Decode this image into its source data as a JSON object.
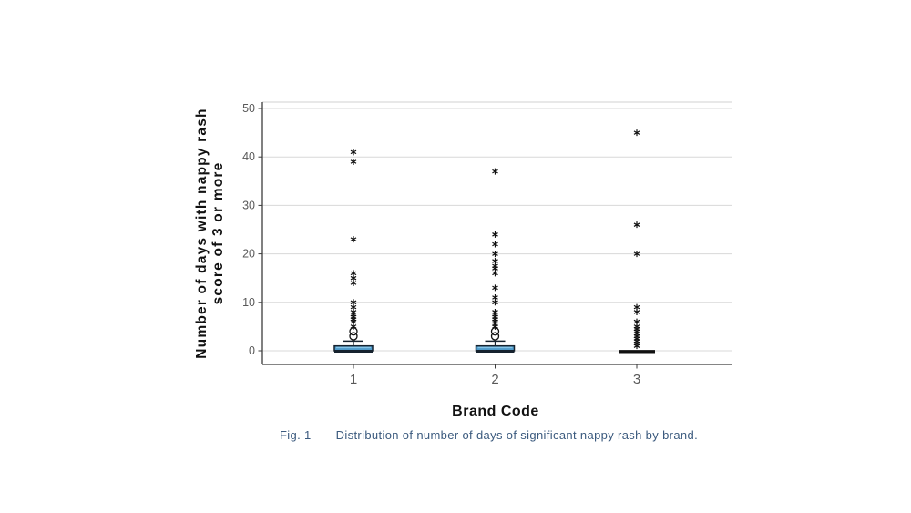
{
  "figure": {
    "caption": {
      "label": "Fig. 1",
      "text": "Distribution of number of days of significant nappy rash by brand.",
      "color": "#3b5a7e"
    }
  },
  "chart_data": {
    "type": "box",
    "title": "",
    "xlabel": "Brand Code",
    "ylabel": "Number of days with nappy rash score of 3 or more",
    "ylabel_lines": [
      "Number of days with nappy rash",
      "score of 3 or more"
    ],
    "categories": [
      "1",
      "2",
      "3"
    ],
    "yticks": [
      0,
      10,
      20,
      30,
      40,
      50
    ],
    "ylim": [
      -3,
      51
    ],
    "grid": true,
    "legend": "none",
    "marker_semantics": {
      "star": "extreme-outlier",
      "circle": "mild-outlier"
    },
    "colors": {
      "box_fill": "#4f9bcb",
      "box_highlight": "#85c4e8",
      "box_border": "#16222e",
      "grid_line": "#d8d8d8",
      "frame_line": "#d0d0d0",
      "axis_line": "#3c3c3c",
      "tick_label": "#595959",
      "axis_title": "#111111",
      "outlier": "#111111"
    },
    "boxes": [
      {
        "category": "1",
        "q1": 0,
        "median": 0,
        "q3": 1,
        "whisker_low": 0,
        "whisker_high": 2,
        "outliers_circle": [
          3,
          4
        ],
        "outliers_star": [
          5,
          6,
          6.5,
          7,
          7.5,
          8,
          9,
          10,
          14,
          15,
          16,
          23,
          39,
          41
        ]
      },
      {
        "category": "2",
        "q1": 0,
        "median": 0,
        "q3": 1,
        "whisker_low": 0,
        "whisker_high": 2,
        "outliers_circle": [
          3,
          4
        ],
        "outliers_star": [
          5,
          5.5,
          6,
          6.5,
          7,
          7.5,
          8,
          10,
          11,
          13,
          16,
          17,
          17.5,
          18.5,
          20,
          22,
          24,
          37
        ]
      },
      {
        "category": "3",
        "q1": 0,
        "median": 0,
        "q3": 0,
        "whisker_low": 0,
        "whisker_high": null,
        "outliers_circle": [],
        "outliers_star": [
          1,
          1.5,
          2,
          2.5,
          3,
          3.5,
          4,
          4.5,
          5,
          6,
          8,
          9,
          20,
          26,
          45
        ]
      }
    ]
  }
}
